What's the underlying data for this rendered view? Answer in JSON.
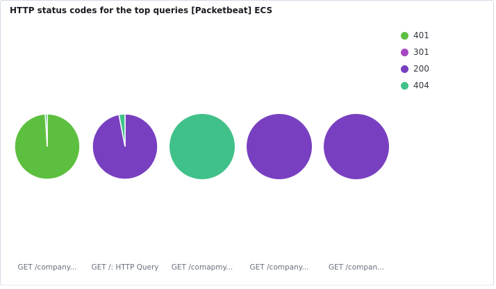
{
  "panel": {
    "title": "HTTP status codes for the top queries [Packetbeat] ECS"
  },
  "colors": {
    "401": "#5dbf40",
    "301": "#a847c2",
    "200": "#7840c0",
    "404": "#41c18a"
  },
  "chart_data": {
    "type": "pie",
    "title": "HTTP status codes for the top queries [Packetbeat] ECS",
    "legend_position": "top-right",
    "legend": [
      "401",
      "301",
      "200",
      "404"
    ],
    "pies": [
      {
        "label": "GET /company...",
        "slices": [
          {
            "name": "401",
            "value": 99
          },
          {
            "name": "404",
            "value": 1
          }
        ]
      },
      {
        "label": "GET /: HTTP Query",
        "slices": [
          {
            "name": "200",
            "value": 97
          },
          {
            "name": "404",
            "value": 3
          }
        ]
      },
      {
        "label": "GET /comapmy...",
        "slices": [
          {
            "name": "404",
            "value": 100
          }
        ]
      },
      {
        "label": "GET /company...",
        "slices": [
          {
            "name": "200",
            "value": 100
          }
        ]
      },
      {
        "label": "GET /compan...",
        "slices": [
          {
            "name": "200",
            "value": 100
          }
        ]
      }
    ]
  }
}
